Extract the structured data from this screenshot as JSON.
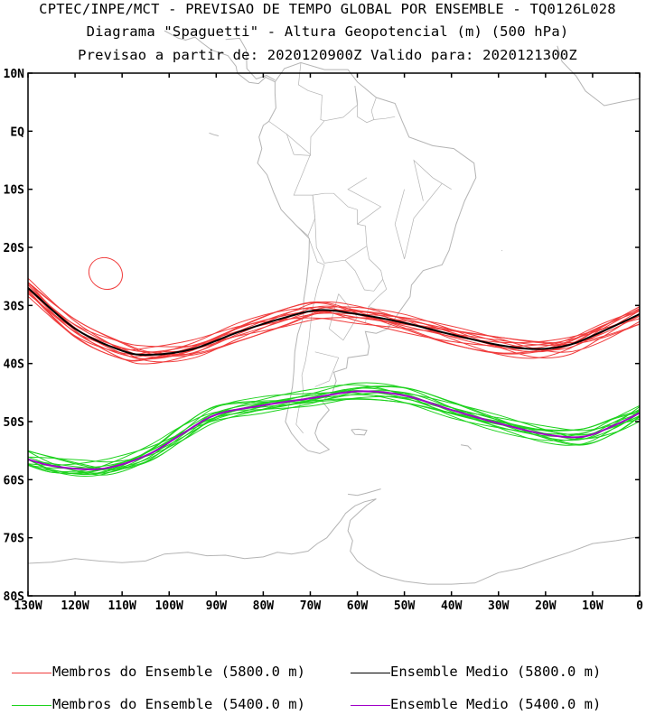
{
  "header": {
    "line1": "CPTEC/INPE/MCT - PREVISAO DE TEMPO GLOBAL POR ENSEMBLE - TQ0126L028",
    "line2": "Diagrama \"Spaguetti\" - Altura Geopotencial (m) (500 hPa)",
    "line3": "Previsao a partir de: 2020120900Z  Valido para: 2020121300Z"
  },
  "map": {
    "lat_labels": [
      "10N",
      "EQ",
      "10S",
      "20S",
      "30S",
      "40S",
      "50S",
      "60S",
      "70S",
      "80S"
    ],
    "lon_labels": [
      "130W",
      "120W",
      "110W",
      "100W",
      "90W",
      "80W",
      "70W",
      "60W",
      "50W",
      "40W",
      "30W",
      "20W",
      "10W",
      "0"
    ],
    "lat_range": [
      10,
      -80
    ],
    "lon_range": [
      -130,
      0
    ],
    "coastline_color": "#b4b4b4",
    "members_5800_color": "#f03c3c",
    "mean_5800_color": "#000000",
    "members_5400_color": "#1ed21e",
    "mean_5400_color": "#a000c8"
  },
  "legend": [
    {
      "label": "Membros do Ensemble (5800.0 m)",
      "color": "#f03c3c"
    },
    {
      "label": "Ensemble Medio (5800.0 m)",
      "color": "#000000"
    },
    {
      "label": "Membros do Ensemble (5400.0 m)",
      "color": "#1ed21e"
    },
    {
      "label": "Ensemble Medio (5400.0 m)",
      "color": "#a000c8"
    }
  ],
  "chart_data": {
    "type": "line",
    "series": [
      {
        "name": "Ensemble Medio (5800.0 m)",
        "x": [
          -130,
          -120,
          -110,
          -104,
          -95,
          -85,
          -75,
          -68,
          -60,
          -50,
          -40,
          -30,
          -22,
          -15,
          -8,
          0
        ],
        "y": [
          -27,
          -34,
          -37.8,
          -38.5,
          -37.5,
          -34.5,
          -32,
          -30.8,
          -31.5,
          -33,
          -35,
          -36.8,
          -37.5,
          -36.8,
          -34.5,
          -31.5
        ]
      },
      {
        "name": "Ensemble Medio (5400.0 m)",
        "x": [
          -130,
          -125,
          -118,
          -112,
          -104,
          -97,
          -90,
          -80,
          -70,
          -60,
          -50,
          -40,
          -30,
          -20,
          -12,
          -5,
          0
        ],
        "y": [
          -56.5,
          -57.6,
          -58.2,
          -57.8,
          -55.5,
          -52,
          -48.8,
          -47.2,
          -46,
          -44.8,
          -45.5,
          -48,
          -50.3,
          -52.2,
          -52.6,
          -50.5,
          -48.5
        ]
      }
    ],
    "ylim": [
      -80,
      10
    ],
    "xlim": [
      -130,
      0
    ]
  }
}
